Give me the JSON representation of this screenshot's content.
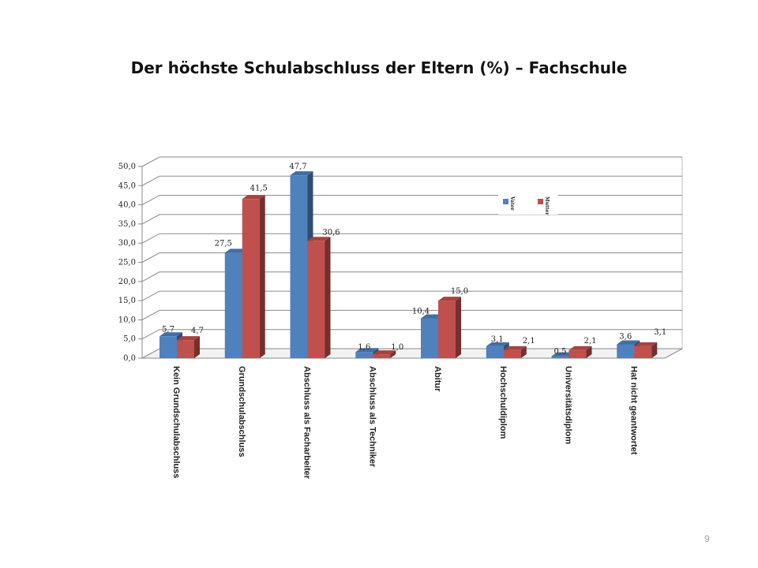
{
  "slide": {
    "title": "Der höchste Schulabschluss der Eltern (%) – Fachschule",
    "page_number": "9"
  },
  "chart_data": {
    "type": "bar",
    "style": "3d-clustered-column",
    "title": "Der höchste Schulabschluss der Eltern (%) – Fachschule",
    "categories": [
      "Kein Grundschulabschluss",
      "Grundschulabschluss",
      "Abschluss  als Facharbeiter",
      "Abschluss  als Techniker",
      "Abitur",
      "Hochschuldiplom",
      "Universitätsdiplom",
      "Hat nicht geantwortet"
    ],
    "series": [
      {
        "name": "Vater",
        "color": "#4f81bd",
        "values": [
          5.7,
          27.5,
          47.7,
          1.6,
          10.4,
          3.1,
          0.5,
          3.6
        ],
        "labels": [
          "5,7",
          "27,5",
          "47,7",
          "1,6",
          "10,4",
          "3,1",
          "0,5",
          "3,6"
        ]
      },
      {
        "name": "Mutter",
        "color": "#c0504d",
        "values": [
          4.7,
          41.5,
          30.6,
          1.0,
          15.0,
          2.1,
          2.1,
          3.1
        ],
        "labels": [
          "4,7",
          "41,5",
          "30,6",
          "1,0",
          "15,0",
          "2,1",
          "2,1",
          "3,1"
        ]
      }
    ],
    "yticks": [
      "0,0",
      "5,0",
      "10,0",
      "15,0",
      "20,0",
      "25,0",
      "30,0",
      "35,0",
      "40,0",
      "45,0",
      "50,0"
    ],
    "ylim": [
      0,
      50
    ],
    "ystep": 5,
    "grid": true,
    "legend": "top-right",
    "xlabel": "",
    "ylabel": ""
  }
}
